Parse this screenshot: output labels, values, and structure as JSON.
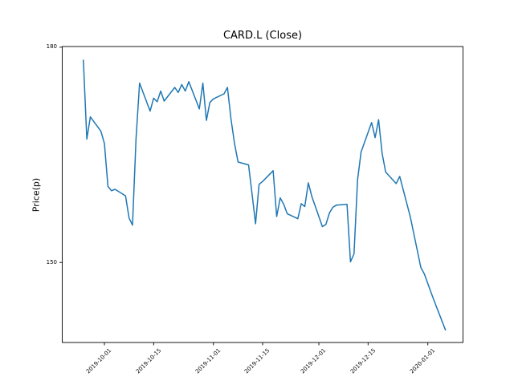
{
  "chart_data": {
    "type": "line",
    "title": "CARD.L (Close)",
    "xlabel": "",
    "ylabel": "Price(p)",
    "legend": "none",
    "grid": false,
    "line_color": "#1f77b4",
    "axis_color": "#000000",
    "background_color": "#ffffff",
    "xlim": [
      "2019-09-19",
      "2020-01-11"
    ],
    "ylim": [
      138.85,
      180.1
    ],
    "y_tick_values": [
      150,
      180
    ],
    "y_tick_labels": [
      "150",
      "180"
    ],
    "x_tick_labels": [
      "2019-10-01",
      "2019-10-15",
      "2019-11-01",
      "2019-11-15",
      "2019-12-01",
      "2019-12-15",
      "2020-01-01"
    ],
    "series_name": "Close",
    "x": [
      "2019-09-25",
      "2019-09-26",
      "2019-09-27",
      "2019-09-30",
      "2019-10-01",
      "2019-10-02",
      "2019-10-03",
      "2019-10-04",
      "2019-10-07",
      "2019-10-08",
      "2019-10-09",
      "2019-10-10",
      "2019-10-11",
      "2019-10-14",
      "2019-10-15",
      "2019-10-16",
      "2019-10-17",
      "2019-10-18",
      "2019-10-21",
      "2019-10-22",
      "2019-10-23",
      "2019-10-24",
      "2019-10-25",
      "2019-10-28",
      "2019-10-29",
      "2019-10-30",
      "2019-10-31",
      "2019-11-01",
      "2019-11-04",
      "2019-11-05",
      "2019-11-06",
      "2019-11-07",
      "2019-11-08",
      "2019-11-11",
      "2019-11-12",
      "2019-11-13",
      "2019-11-14",
      "2019-11-15",
      "2019-11-18",
      "2019-11-19",
      "2019-11-20",
      "2019-11-21",
      "2019-11-22",
      "2019-11-25",
      "2019-11-26",
      "2019-11-27",
      "2019-11-28",
      "2019-11-29",
      "2019-12-02",
      "2019-12-03",
      "2019-12-04",
      "2019-12-05",
      "2019-12-06",
      "2019-12-09",
      "2019-12-10",
      "2019-12-11",
      "2019-12-12",
      "2019-12-13",
      "2019-12-16",
      "2019-12-17",
      "2019-12-18",
      "2019-12-19",
      "2019-12-20",
      "2019-12-23",
      "2019-12-24",
      "2019-12-27",
      "2019-12-30",
      "2019-12-31",
      "2020-01-02",
      "2020-01-03",
      "2020-01-06"
    ],
    "y": [
      178.2,
      167.2,
      170.3,
      168.3,
      166.6,
      160.6,
      160.0,
      160.2,
      159.3,
      156.2,
      155.2,
      167.3,
      175.0,
      171.1,
      172.9,
      172.4,
      173.9,
      172.5,
      174.4,
      173.7,
      174.8,
      173.9,
      175.2,
      171.4,
      175.0,
      169.8,
      172.3,
      172.8,
      173.5,
      174.4,
      170.0,
      166.6,
      164.0,
      163.6,
      159.5,
      155.4,
      160.9,
      161.3,
      162.8,
      156.4,
      159.0,
      158.1,
      156.8,
      156.1,
      158.2,
      157.8,
      161.1,
      159.2,
      155.0,
      155.3,
      156.9,
      157.7,
      158.0,
      158.1,
      150.1,
      151.2,
      161.5,
      165.4,
      169.5,
      167.4,
      169.9,
      165.2,
      162.6,
      161.0,
      162.0,
      156.4,
      149.3,
      148.4,
      145.7,
      144.4,
      140.6
    ]
  }
}
